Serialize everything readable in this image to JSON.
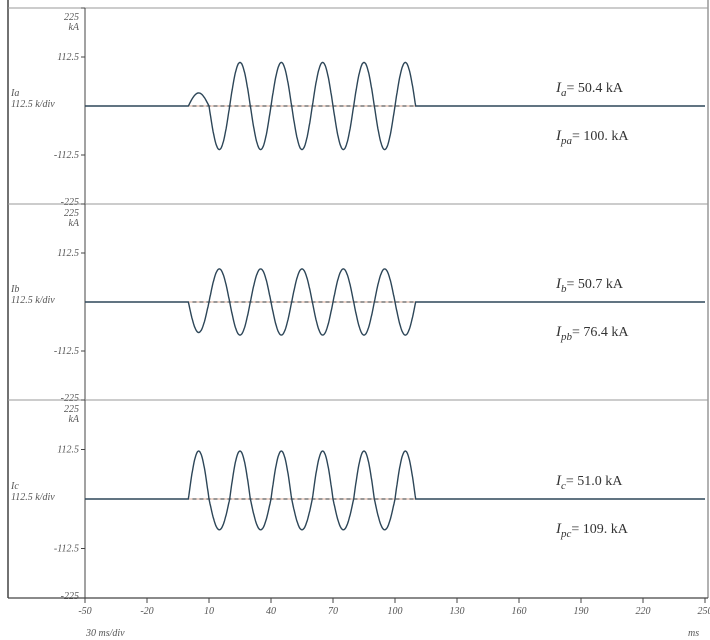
{
  "chart_data": {
    "type": "line",
    "x_unit": "ms",
    "x_division": "30 ms/div",
    "x_ticks": [
      "-50",
      "-20",
      "10",
      "40",
      "70",
      "100",
      "130",
      "160",
      "190",
      "220",
      "250"
    ],
    "xlim": [
      -50,
      250
    ],
    "channels": [
      {
        "label": "Ia",
        "scale": "112.5 k/div",
        "y_unit": "kA",
        "y_ticks": [
          "225",
          "112.5",
          "-112.5",
          "-225"
        ],
        "ylim": [
          -225,
          225
        ],
        "wave": {
          "start_ms": 0,
          "end_ms": 110,
          "cycles": 5.5,
          "peak_pos_ka": 100,
          "peak_neg_ka": -100,
          "first_peak_ka": 30
        },
        "annotations": [
          {
            "symbol": "I",
            "sub": "a",
            "text": "= 50.4 kA"
          },
          {
            "symbol": "I",
            "sub": "pa",
            "text": "= 100. kA"
          }
        ]
      },
      {
        "label": "Ib",
        "scale": "112.5 k/div",
        "y_unit": "kA",
        "y_ticks": [
          "225",
          "112.5",
          "-112.5",
          "-225"
        ],
        "ylim": [
          -225,
          225
        ],
        "wave": {
          "start_ms": 0,
          "end_ms": 110,
          "cycles": 5.5,
          "peak_pos_ka": 76,
          "peak_neg_ka": -76,
          "first_peak_ka": -70
        },
        "annotations": [
          {
            "symbol": "I",
            "sub": "b",
            "text": "= 50.7 kA"
          },
          {
            "symbol": "I",
            "sub": "pb",
            "text": "= 76.4 kA"
          }
        ]
      },
      {
        "label": "Ic",
        "scale": "112.5 k/div",
        "y_unit": "kA",
        "y_ticks": [
          "225",
          "112.5",
          "-112.5",
          "-225"
        ],
        "ylim": [
          -225,
          225
        ],
        "wave": {
          "start_ms": 0,
          "end_ms": 110,
          "cycles": 5.5,
          "peak_pos_ka": 109,
          "peak_neg_ka": -70,
          "first_peak_ka": 109
        },
        "annotations": [
          {
            "symbol": "I",
            "sub": "c",
            "text": "= 51.0 kA"
          },
          {
            "symbol": "I",
            "sub": "pc",
            "text": "= 109. kA"
          }
        ]
      }
    ]
  },
  "colors": {
    "trace": "#2d4658",
    "grid": "#9a9a9a",
    "ref": "#c07050",
    "axis": "#444444"
  }
}
